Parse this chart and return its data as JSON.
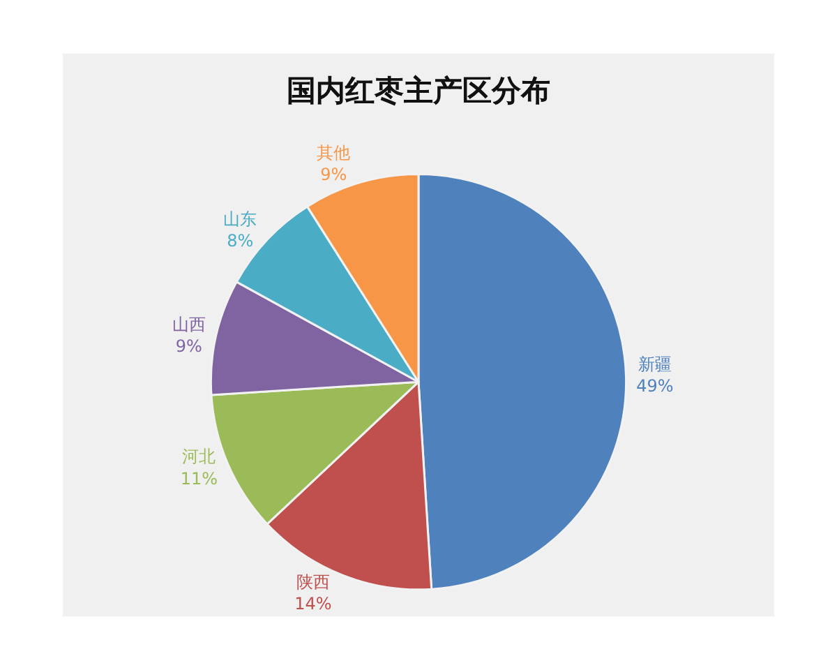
{
  "chart_data": {
    "type": "pie",
    "title": "国内红枣主产区分布",
    "categories": [
      "新疆",
      "陕西",
      "河北",
      "山西",
      "山东",
      "其他"
    ],
    "values": [
      49,
      14,
      11,
      9,
      8,
      9
    ],
    "value_labels": [
      "49%",
      "14%",
      "11%",
      "9%",
      "8%",
      "9%"
    ],
    "colors": [
      "#4f81bd",
      "#c0504d",
      "#9bbb59",
      "#8064a2",
      "#4bacc6",
      "#f79646"
    ],
    "legend": false
  }
}
